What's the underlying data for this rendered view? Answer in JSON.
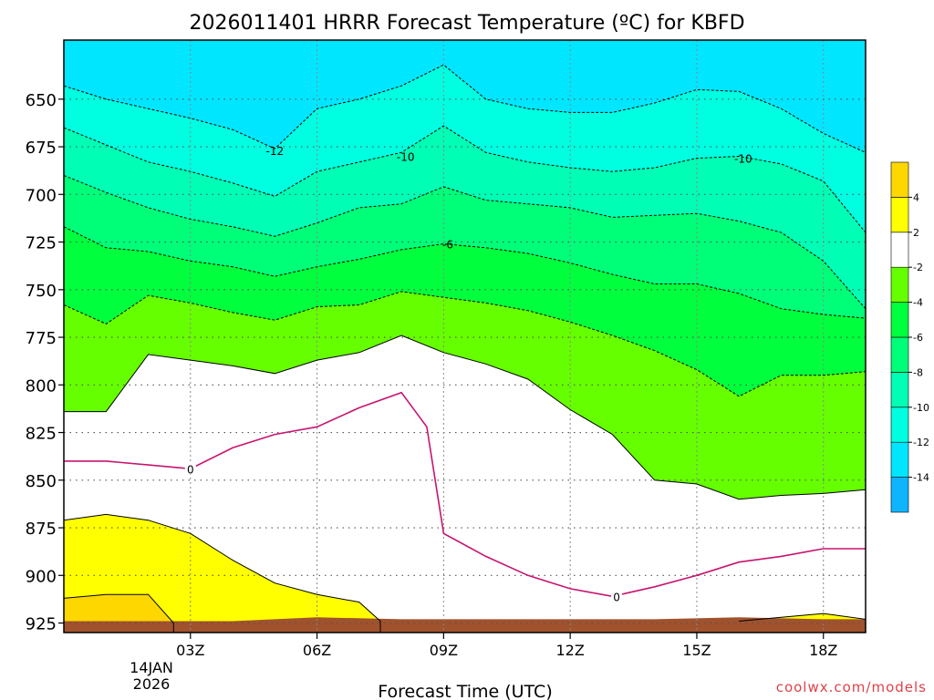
{
  "chart_data": {
    "type": "area",
    "title": "2026011401 HRRR Forecast Temperature (ºC) for KBFD",
    "xlabel": "Forecast Time (UTC)",
    "ylabel": "",
    "x_range_hours": [
      0,
      19
    ],
    "y_range_hpa": [
      619,
      930
    ],
    "y_ticks": [
      650,
      675,
      700,
      725,
      750,
      775,
      800,
      825,
      850,
      875,
      900,
      925
    ],
    "x_ticks": [
      {
        "hour": 3,
        "label": "03Z"
      },
      {
        "hour": 6,
        "label": "06Z"
      },
      {
        "hour": 9,
        "label": "09Z"
      },
      {
        "hour": 12,
        "label": "12Z"
      },
      {
        "hour": 15,
        "label": "15Z"
      },
      {
        "hour": 18,
        "label": "18Z"
      }
    ],
    "date_label": [
      "14JAN",
      "2026"
    ],
    "grid": true,
    "legend_position": "right",
    "colorbar": {
      "colors": [
        "#0fb4ff",
        "#00e6ff",
        "#00ffe0",
        "#00ffb4",
        "#00ff78",
        "#00ff3c",
        "#66ff00",
        "#ffffff",
        "#ffff00",
        "#ffd700"
      ],
      "labels": [
        "-14",
        "-12",
        "-10",
        "-8",
        "-6",
        "-4",
        "-2",
        "2",
        "4"
      ]
    },
    "bands": [
      {
        "color": "#00e6ff",
        "level": -12,
        "contour": [
          [
            0,
            619
          ],
          [
            19,
            619
          ]
        ]
      },
      {
        "color": "#00ffe0",
        "level": -10,
        "contour": [
          [
            0,
            643
          ],
          [
            1,
            650
          ],
          [
            2,
            655
          ],
          [
            3,
            660
          ],
          [
            4,
            666
          ],
          [
            5,
            676
          ],
          [
            6,
            655
          ],
          [
            7,
            650
          ],
          [
            8,
            643
          ],
          [
            9,
            632
          ],
          [
            10,
            650
          ],
          [
            11,
            655
          ],
          [
            12,
            657
          ],
          [
            13,
            657
          ],
          [
            14,
            652
          ],
          [
            15,
            645
          ],
          [
            16,
            646
          ],
          [
            17,
            655
          ],
          [
            18,
            668
          ],
          [
            19,
            678
          ]
        ]
      },
      {
        "color": "#00ffb4",
        "level": -8,
        "contour": [
          [
            0,
            665
          ],
          [
            1,
            674
          ],
          [
            2,
            683
          ],
          [
            3,
            688
          ],
          [
            4,
            694
          ],
          [
            5,
            701
          ],
          [
            6,
            688
          ],
          [
            7,
            683
          ],
          [
            8,
            678
          ],
          [
            9,
            664
          ],
          [
            10,
            678
          ],
          [
            11,
            683
          ],
          [
            12,
            686
          ],
          [
            13,
            688
          ],
          [
            14,
            686
          ],
          [
            15,
            681
          ],
          [
            16,
            680
          ],
          [
            17,
            684
          ],
          [
            18,
            693
          ],
          [
            19,
            720
          ]
        ]
      },
      {
        "color": "#00ff78",
        "level": -6,
        "contour": [
          [
            0,
            690
          ],
          [
            1,
            699
          ],
          [
            2,
            707
          ],
          [
            3,
            713
          ],
          [
            4,
            717
          ],
          [
            5,
            722
          ],
          [
            6,
            715
          ],
          [
            7,
            707
          ],
          [
            8,
            705
          ],
          [
            9,
            696
          ],
          [
            10,
            703
          ],
          [
            11,
            705
          ],
          [
            12,
            707
          ],
          [
            13,
            712
          ],
          [
            14,
            711
          ],
          [
            15,
            710
          ],
          [
            16,
            714
          ],
          [
            17,
            720
          ],
          [
            18,
            735
          ],
          [
            19,
            760
          ]
        ]
      },
      {
        "color": "#00ff3c",
        "level": -4,
        "contour": [
          [
            0,
            717
          ],
          [
            1,
            728
          ],
          [
            2,
            730
          ],
          [
            3,
            735
          ],
          [
            4,
            738
          ],
          [
            5,
            743
          ],
          [
            6,
            738
          ],
          [
            7,
            734
          ],
          [
            8,
            729
          ],
          [
            9,
            726
          ],
          [
            10,
            728
          ],
          [
            11,
            731
          ],
          [
            12,
            736
          ],
          [
            13,
            742
          ],
          [
            14,
            747
          ],
          [
            15,
            747
          ],
          [
            16,
            752
          ],
          [
            17,
            760
          ],
          [
            18,
            763
          ],
          [
            19,
            765
          ]
        ]
      },
      {
        "color": "#66ff00",
        "level": -2,
        "contour": [
          [
            0,
            758
          ],
          [
            1,
            768
          ],
          [
            2,
            753
          ],
          [
            3,
            757
          ],
          [
            4,
            762
          ],
          [
            5,
            766
          ],
          [
            6,
            759
          ],
          [
            7,
            758
          ],
          [
            8,
            751
          ],
          [
            9,
            754
          ],
          [
            10,
            757
          ],
          [
            11,
            761
          ],
          [
            12,
            767
          ],
          [
            13,
            774
          ],
          [
            14,
            782
          ],
          [
            15,
            792
          ],
          [
            16,
            806
          ],
          [
            17,
            795
          ],
          [
            18,
            795
          ],
          [
            19,
            793
          ]
        ]
      },
      {
        "color": "#ffffff",
        "level": 2,
        "contour": [
          [
            0,
            814
          ],
          [
            1,
            814
          ],
          [
            2,
            784
          ],
          [
            3,
            787
          ],
          [
            4,
            790
          ],
          [
            5,
            794
          ],
          [
            6,
            787
          ],
          [
            7,
            783
          ],
          [
            8,
            774
          ],
          [
            9,
            783
          ],
          [
            10,
            789
          ],
          [
            11,
            797
          ],
          [
            12,
            813
          ],
          [
            13,
            826
          ],
          [
            14,
            850
          ],
          [
            15,
            852
          ],
          [
            16,
            860
          ],
          [
            17,
            858
          ],
          [
            18,
            857
          ],
          [
            19,
            855
          ]
        ]
      },
      {
        "color": "#ffff00",
        "level": 4,
        "contour": [
          [
            0,
            871
          ],
          [
            1,
            868
          ],
          [
            2,
            871
          ],
          [
            3,
            878
          ],
          [
            4,
            892
          ],
          [
            5,
            904
          ],
          [
            6,
            910
          ],
          [
            7,
            914
          ],
          [
            7.5,
            924
          ],
          [
            7.5,
            930
          ],
          [
            0,
            930
          ]
        ]
      },
      {
        "color": "#ffd700",
        "level": 4,
        "contour": [
          [
            0,
            912
          ],
          [
            1,
            910
          ],
          [
            2,
            910
          ],
          [
            2.6,
            925
          ],
          [
            2.6,
            930
          ],
          [
            0,
            930
          ]
        ]
      },
      {
        "color": "#ffff00",
        "level": 4,
        "contour": [
          [
            16,
            924
          ],
          [
            17,
            922
          ],
          [
            18,
            920
          ],
          [
            19,
            923
          ],
          [
            19,
            930
          ],
          [
            16,
            930
          ]
        ]
      }
    ],
    "zero_line": [
      [
        0,
        840
      ],
      [
        1,
        840
      ],
      [
        2,
        842
      ],
      [
        3,
        844
      ],
      [
        4,
        833
      ],
      [
        5,
        826
      ],
      [
        6,
        822
      ],
      [
        7,
        812
      ],
      [
        8,
        804
      ],
      [
        8.6,
        822
      ],
      [
        9,
        878
      ],
      [
        10,
        890
      ],
      [
        11,
        900
      ],
      [
        12,
        907
      ],
      [
        13,
        911
      ],
      [
        14,
        906
      ],
      [
        15,
        900
      ],
      [
        16,
        893
      ],
      [
        17,
        890
      ],
      [
        18,
        886
      ],
      [
        19,
        886
      ]
    ],
    "terrain_top": [
      [
        0,
        924
      ],
      [
        2,
        924
      ],
      [
        4,
        924
      ],
      [
        6,
        922
      ],
      [
        8,
        923
      ],
      [
        10,
        923
      ],
      [
        12,
        923
      ],
      [
        14,
        923
      ],
      [
        16,
        922
      ],
      [
        18,
        923
      ],
      [
        19,
        923
      ]
    ],
    "terrain_color": "#a0522d",
    "contour_labels": [
      {
        "text": "-12",
        "x": 5.0,
        "y": 677
      },
      {
        "text": "-10",
        "x": 8.1,
        "y": 680
      },
      {
        "text": "-6",
        "x": 9.1,
        "y": 726
      },
      {
        "text": "-10",
        "x": 16.1,
        "y": 681
      },
      {
        "text": "0",
        "x": 3.0,
        "y": 844
      },
      {
        "text": "0",
        "x": 13.1,
        "y": 911
      }
    ],
    "credit": "coolwx.com/models"
  }
}
